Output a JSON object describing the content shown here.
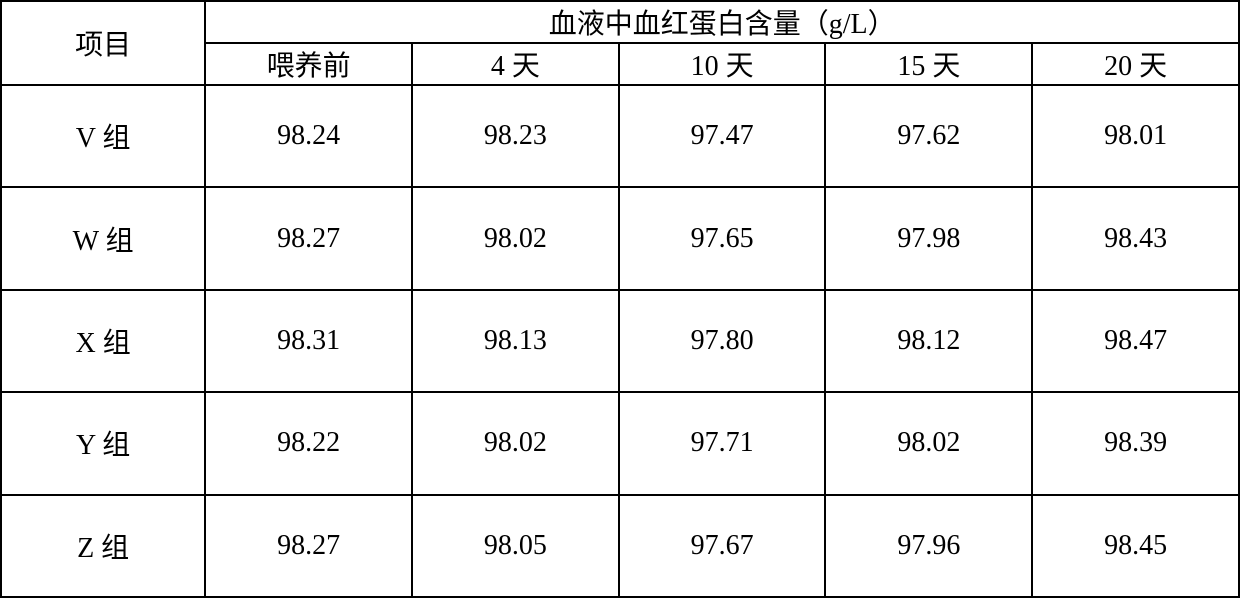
{
  "table": {
    "type": "table",
    "background_color": "#ffffff",
    "border_color": "#000000",
    "text_color": "#000000",
    "font_size": 28,
    "font_family": "SimSun",
    "header": {
      "row1_col1": "项目",
      "row1_merged": "血液中血红蛋白含量（g/L）"
    },
    "subheaders": [
      "喂养前",
      "4 天",
      "10 天",
      "15 天",
      "20 天"
    ],
    "rows": [
      {
        "label": "V 组",
        "values": [
          "98.24",
          "98.23",
          "97.47",
          "97.62",
          "98.01"
        ]
      },
      {
        "label": "W 组",
        "values": [
          "98.27",
          "98.02",
          "97.65",
          "97.98",
          "98.43"
        ]
      },
      {
        "label": "X 组",
        "values": [
          "98.31",
          "98.13",
          "97.80",
          "98.12",
          "98.47"
        ]
      },
      {
        "label": "Y 组",
        "values": [
          "98.22",
          "98.02",
          "97.71",
          "98.02",
          "98.39"
        ]
      },
      {
        "label": "Z 组",
        "values": [
          "98.27",
          "98.05",
          "97.67",
          "97.96",
          "98.45"
        ]
      }
    ]
  }
}
